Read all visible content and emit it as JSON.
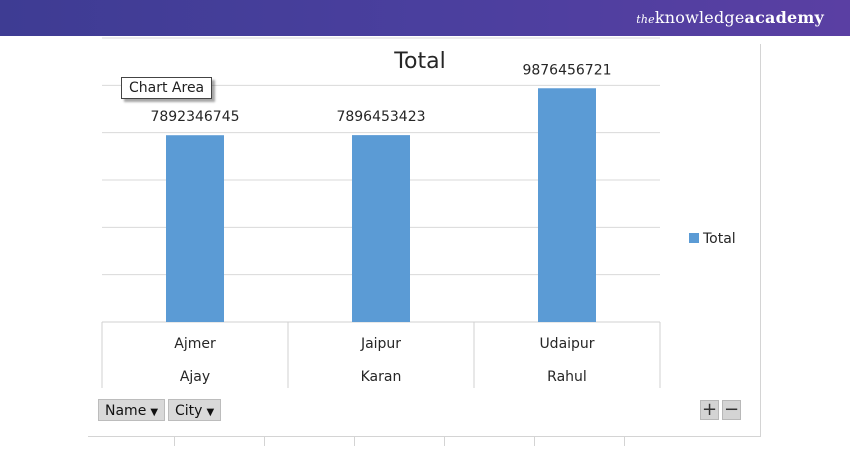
{
  "brand": {
    "prefix": "the",
    "main": "knowledge",
    "suffix": "academy"
  },
  "chart_area_label": "Chart Area",
  "field_buttons": [
    {
      "label": "Name",
      "icon": "dropdown-arrow"
    },
    {
      "label": "City",
      "icon": "dropdown-arrow"
    }
  ],
  "zoom": {
    "plus": "+",
    "minus": "−"
  },
  "chart_data": {
    "type": "bar",
    "title": "Total",
    "categories": [
      "Ajmer",
      "Jaipur",
      "Udaipur"
    ],
    "outer_categories": [
      "Ajay",
      "Karan",
      "Rahul"
    ],
    "series": [
      {
        "name": "Total",
        "values": [
          7892346745,
          7896453423,
          9876456721
        ],
        "color": "#5b9bd5"
      }
    ],
    "data_labels": [
      "7892346745",
      "7896453423",
      "9876456721"
    ],
    "ylim": [
      0,
      12000000000
    ],
    "grid": true,
    "legend": "right"
  }
}
